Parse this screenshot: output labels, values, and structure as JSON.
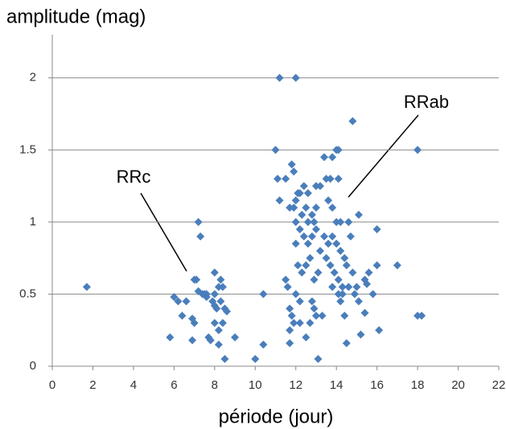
{
  "chart_data": {
    "type": "scatter",
    "y_label": "amplitude (mag)",
    "x_label": "période (jour)",
    "annotations": [
      "RRc",
      "RRab"
    ],
    "color": "#4a7ebb",
    "grid": true,
    "xlim": [
      0,
      22
    ],
    "xticks": [
      0,
      2,
      4,
      6,
      8,
      10,
      12,
      14,
      16,
      18,
      20,
      22
    ],
    "ylim": [
      0,
      2.3
    ],
    "yticks": [
      0,
      0.5,
      1,
      1.5,
      2
    ],
    "x": [
      1.7,
      5.8,
      6.0,
      6.2,
      6.4,
      6.6,
      6.9,
      7.0,
      7.1,
      7.2,
      7.3,
      7.2,
      7.4,
      7.5,
      7.6,
      7.7,
      7.8,
      7.9,
      8.0,
      8.0,
      8.1,
      8.2,
      8.2,
      8.3,
      8.4,
      8.3,
      8.4,
      8.5,
      8.6,
      8.5,
      8.2,
      8.0,
      9.0,
      7.0,
      6.9,
      7.6,
      8.0,
      10.0,
      10.4,
      10.4,
      11.2,
      12.0,
      11.0,
      14.8,
      18.0,
      18.0,
      18.2,
      17.0,
      16.0,
      16.1,
      15.1,
      14.0,
      14.1,
      13.4,
      13.8,
      11.1,
      11.5,
      11.8,
      11.9,
      11.2,
      11.7,
      12.0,
      12.2,
      12.4,
      12.5,
      12.6,
      12.8,
      12.9,
      13.0,
      13.2,
      13.5,
      13.7,
      14.1,
      13.6,
      13.8,
      14.2,
      14.6,
      12.0,
      12.2,
      12.4,
      12.6,
      12.8,
      13.0,
      13.2,
      13.4,
      13.6,
      13.8,
      14.0,
      14.2,
      14.4,
      14.5,
      12.0,
      12.1,
      12.3,
      12.5,
      12.7,
      12.9,
      13.1,
      13.5,
      13.7,
      13.9,
      14.1,
      14.3,
      14.6,
      14.9,
      15.1,
      15.4,
      15.6,
      16.0,
      15.8,
      11.5,
      11.6,
      11.7,
      11.8,
      11.7,
      11.9,
      12.2,
      12.5,
      12.8,
      12.9,
      13.0,
      13.3,
      13.1,
      13.8,
      14.2,
      14.4,
      14.5,
      15.2,
      15.4,
      15.5,
      11.7,
      12.0,
      12.2,
      12.7,
      14.1,
      14.3,
      12.3,
      12.6,
      13.0,
      11.9,
      12.1,
      14.0,
      14.8,
      14.7,
      15.0
    ],
    "values": [
      0.55,
      0.2,
      0.48,
      0.45,
      0.35,
      0.45,
      0.18,
      0.6,
      0.6,
      1.0,
      0.9,
      0.52,
      0.5,
      0.5,
      0.48,
      0.2,
      0.18,
      0.45,
      0.65,
      0.5,
      0.4,
      0.55,
      0.25,
      0.6,
      0.3,
      0.45,
      0.55,
      0.4,
      0.38,
      0.05,
      0.15,
      0.3,
      0.2,
      0.3,
      0.33,
      0.5,
      0.42,
      0.05,
      0.15,
      0.5,
      2.0,
      2.0,
      1.5,
      1.7,
      1.5,
      0.35,
      0.35,
      0.7,
      0.95,
      0.25,
      1.05,
      1.5,
      1.5,
      1.45,
      1.45,
      1.3,
      1.3,
      1.4,
      1.35,
      1.15,
      1.1,
      1.15,
      1.2,
      1.25,
      1.1,
      1.2,
      1.05,
      1.0,
      1.25,
      1.25,
      1.3,
      1.3,
      1.3,
      1.15,
      1.1,
      1.0,
      1.0,
      1.0,
      0.95,
      0.9,
      0.85,
      0.9,
      0.95,
      0.8,
      0.9,
      0.85,
      0.9,
      0.85,
      0.8,
      0.75,
      0.7,
      0.85,
      0.7,
      0.65,
      0.7,
      0.75,
      0.6,
      0.65,
      0.75,
      0.7,
      0.65,
      0.6,
      0.55,
      0.55,
      0.5,
      0.45,
      0.6,
      0.65,
      0.7,
      0.5,
      0.6,
      0.55,
      0.4,
      0.35,
      0.25,
      0.3,
      0.3,
      0.2,
      0.45,
      0.4,
      0.35,
      0.35,
      0.05,
      0.55,
      0.45,
      0.35,
      0.16,
      0.22,
      0.37,
      0.57,
      0.16,
      0.5,
      0.45,
      0.3,
      0.5,
      0.5,
      1.05,
      1.0,
      1.1,
      1.1,
      1.2,
      1.0,
      0.65,
      0.9,
      0.55
    ]
  }
}
